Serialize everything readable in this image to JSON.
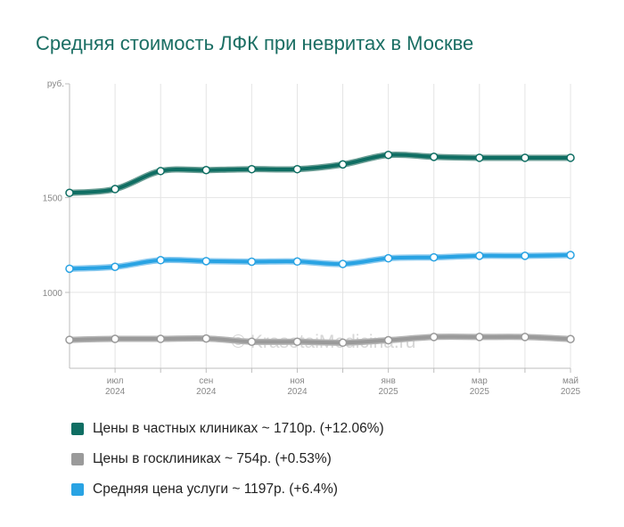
{
  "chart_data": {
    "type": "line",
    "title": "Средняя стоимость ЛФК при невритах в Москве",
    "ylabel": "руб.",
    "ylim": [
      600,
      2100
    ],
    "y_ticks": [
      {
        "value": 1000,
        "label": "1000"
      },
      {
        "value": 1500,
        "label": "1500"
      }
    ],
    "x": [
      "2024-06",
      "2024-07",
      "2024-08",
      "2024-09",
      "2024-10",
      "2024-11",
      "2024-12",
      "2025-01",
      "2025-02",
      "2025-03",
      "2025-04",
      "2025-05"
    ],
    "x_tick_labels": [
      {
        "index": 1,
        "month": "июл",
        "year": "2024"
      },
      {
        "index": 3,
        "month": "сен",
        "year": "2024"
      },
      {
        "index": 5,
        "month": "ноя",
        "year": "2024"
      },
      {
        "index": 7,
        "month": "янв",
        "year": "2025"
      },
      {
        "index": 9,
        "month": "мар",
        "year": "2025"
      },
      {
        "index": 11,
        "month": "май",
        "year": "2025"
      }
    ],
    "watermark": "© KrasotaiMedicina.ru",
    "grid": true,
    "series": [
      {
        "name": "Цены в частных клиниках ~ 1710р. (+12.06%)",
        "color": "#0f6e63",
        "casing": "#6b9e95",
        "values": [
          1525,
          1545,
          1640,
          1645,
          1650,
          1650,
          1675,
          1725,
          1715,
          1710,
          1710,
          1710
        ]
      },
      {
        "name": "Цены в госклиниках ~ 754р. (+0.53%)",
        "color": "#9a9a9a",
        "casing": "#b5b5b5",
        "values": [
          750,
          755,
          755,
          757,
          740,
          740,
          735,
          748,
          765,
          765,
          765,
          754
        ]
      },
      {
        "name": "Средняя цена услуги ~ 1197р. (+6.4%)",
        "color": "#29a3e3",
        "casing": "#8ecbef",
        "values": [
          1125,
          1135,
          1170,
          1165,
          1162,
          1163,
          1150,
          1180,
          1185,
          1193,
          1193,
          1197
        ]
      }
    ]
  }
}
